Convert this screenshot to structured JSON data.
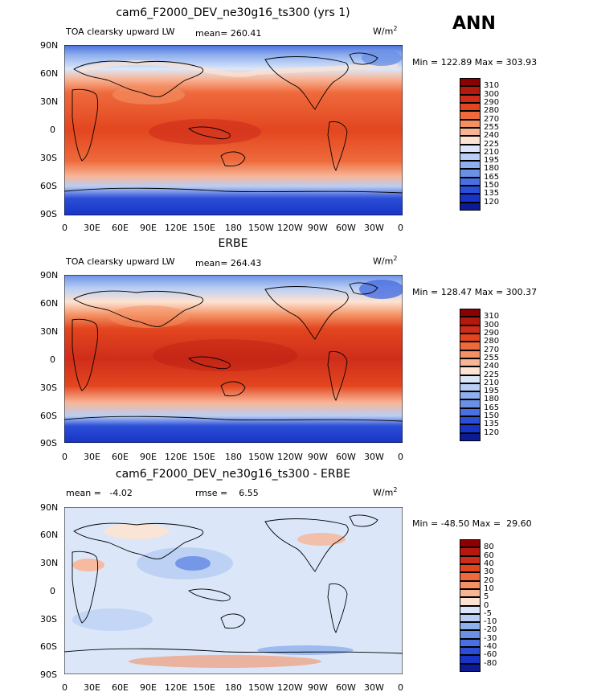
{
  "season_label": "ANN",
  "panels": [
    {
      "title": "cam6_F2000_DEV_ne30g16_ts300 (yrs 1)",
      "left_text": "TOA clearsky upward LW",
      "mean_label": "mean= 260.41",
      "rmse_label": "",
      "units": "W/m",
      "units_sup": "2",
      "minmax": "Min = 122.89 Max = 303.93"
    },
    {
      "title": "ERBE",
      "left_text": "TOA clearsky upward LW",
      "mean_label": "mean= 264.43",
      "rmse_label": "",
      "units": "W/m",
      "units_sup": "2",
      "minmax": "Min = 128.47 Max = 300.37"
    },
    {
      "title": "cam6_F2000_DEV_ne30g16_ts300 - ERBE",
      "left_text": "mean =   -4.02",
      "mean_label": "",
      "rmse_label": "rmse =    6.55",
      "units": "W/m",
      "units_sup": "2",
      "minmax": "Min = -48.50 Max =  29.60"
    }
  ],
  "lat_ticks": [
    "90N",
    "60N",
    "30N",
    "0",
    "30S",
    "60S",
    "90S"
  ],
  "lon_ticks": [
    "0",
    "30E",
    "60E",
    "90E",
    "120E",
    "150E",
    "180",
    "150W",
    "120W",
    "90W",
    "60W",
    "30W",
    "0"
  ],
  "colorbars": [
    {
      "labels": [
        "310",
        "300",
        "290",
        "280",
        "270",
        "255",
        "240",
        "225",
        "210",
        "195",
        "180",
        "165",
        "150",
        "135",
        "120"
      ],
      "colors": [
        "#8b0000",
        "#b5190e",
        "#cf2d1a",
        "#e3461f",
        "#ee6a3c",
        "#f49164",
        "#f8b596",
        "#fde3d1",
        "#dbe7f9",
        "#b9cef4",
        "#8fb0ee",
        "#6b91e6",
        "#4a6fe0",
        "#2b4ed6",
        "#1734c6",
        "#0a1b95"
      ]
    },
    {
      "labels": [
        "310",
        "300",
        "290",
        "280",
        "270",
        "255",
        "240",
        "225",
        "210",
        "195",
        "180",
        "165",
        "150",
        "135",
        "120"
      ],
      "colors": [
        "#8b0000",
        "#b5190e",
        "#cf2d1a",
        "#e3461f",
        "#ee6a3c",
        "#f49164",
        "#f8b596",
        "#fde3d1",
        "#dbe7f9",
        "#b9cef4",
        "#8fb0ee",
        "#6b91e6",
        "#4a6fe0",
        "#2b4ed6",
        "#1734c6",
        "#0a1b95"
      ]
    },
    {
      "labels": [
        "80",
        "60",
        "40",
        "30",
        "20",
        "10",
        "5",
        "0",
        "-5",
        "-10",
        "-20",
        "-30",
        "-40",
        "-60",
        "-80"
      ],
      "colors": [
        "#8b0000",
        "#b5190e",
        "#cf2d1a",
        "#e3461f",
        "#ee6a3c",
        "#f49164",
        "#f8b596",
        "#fde3d1",
        "#dbe7f9",
        "#b9cef4",
        "#8fb0ee",
        "#6b91e6",
        "#4a6fe0",
        "#2b4ed6",
        "#1734c6",
        "#0a1b95"
      ]
    }
  ]
}
